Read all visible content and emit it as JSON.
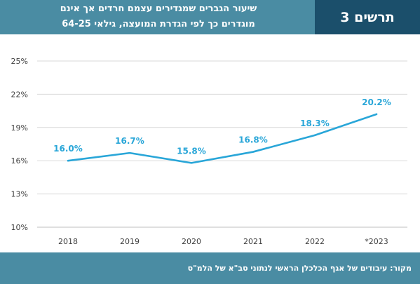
{
  "header": {
    "figure_label": "תרשים 3",
    "title_line1": "שיעור הגברים שמגדירים עצמם חרדים אך אינם",
    "title_line2": "מוגדרים כך לפי הגדרת המועצה, גילאי 64-25"
  },
  "footer": {
    "source": "מקור: עיבודים של אגף הכלכלן הראשי לנתוני סב\"א של הלמ\"ס"
  },
  "chart_data": {
    "type": "line",
    "categories": [
      "2018",
      "2019",
      "2020",
      "2021",
      "2022",
      "*2023"
    ],
    "series": [
      {
        "values": [
          16.0,
          16.7,
          15.8,
          16.8,
          18.3,
          20.2
        ],
        "color": "#29a6d8"
      }
    ],
    "data_labels": [
      "16.0%",
      "16.7%",
      "15.8%",
      "16.8%",
      "18.3%",
      "20.2%"
    ],
    "y_ticks": [
      10,
      13,
      16,
      19,
      22,
      25
    ],
    "y_tick_labels": [
      "10%",
      "13%",
      "16%",
      "19%",
      "22%",
      "25%"
    ],
    "ylim": [
      10,
      25
    ],
    "grid": true,
    "legend": "none"
  }
}
